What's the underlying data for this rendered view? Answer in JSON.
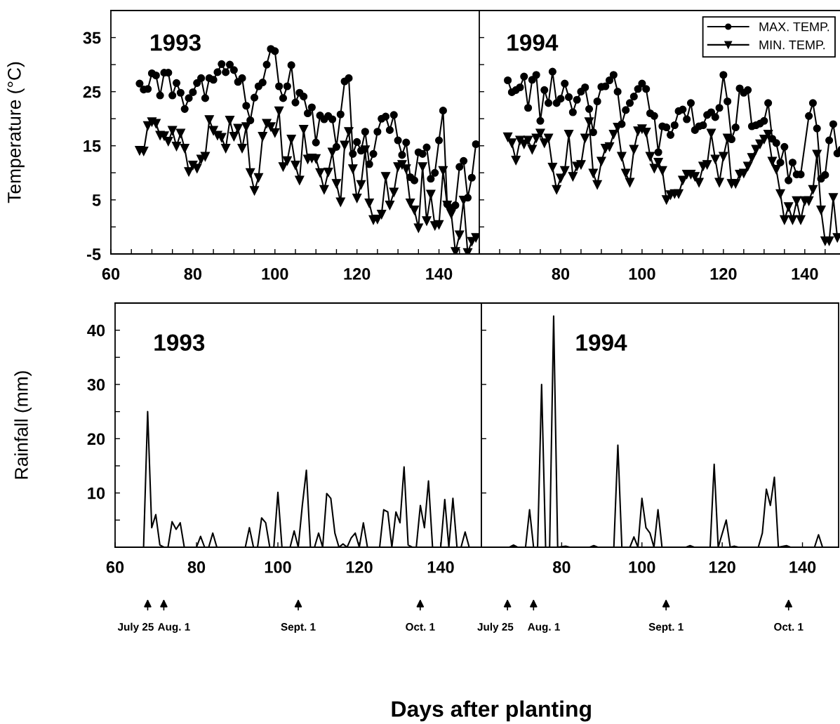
{
  "chart_data": [
    {
      "type": "line",
      "ylabel": "Temperature (°C)",
      "annotations": [
        "1993"
      ],
      "xlim": [
        60,
        150
      ],
      "ylim": [
        -5,
        40
      ],
      "xticks": [
        60,
        {
          "value": 65,
          "label": null
        },
        {
          "value": 70,
          "label": null
        },
        {
          "value": 75,
          "label": null
        },
        80,
        {
          "value": 85,
          "label": null
        },
        {
          "value": 90,
          "label": null
        },
        {
          "value": 95,
          "label": null
        },
        100,
        {
          "value": 105,
          "label": null
        },
        {
          "value": 110,
          "label": null
        },
        {
          "value": 115,
          "label": null
        },
        120,
        {
          "value": 125,
          "label": null
        },
        {
          "value": 130,
          "label": null
        },
        {
          "value": 135,
          "label": null
        },
        140,
        {
          "value": 145,
          "label": null
        },
        {
          "value": 150,
          "label": null
        }
      ],
      "yticks": [
        -5,
        {
          "value": 0,
          "label": null
        },
        5,
        {
          "value": 10,
          "label": null
        },
        15,
        {
          "value": 20,
          "label": null
        },
        25,
        {
          "value": 30,
          "label": null
        },
        35
      ],
      "series": [
        {
          "color": "#000000",
          "marker": "circle",
          "x": [
            67,
            68,
            69,
            70,
            71,
            72,
            73,
            74,
            75,
            76,
            77,
            78,
            79,
            80,
            81,
            82,
            83,
            84,
            85,
            86,
            87,
            88,
            89,
            90,
            91,
            92,
            93,
            94,
            95,
            96,
            97,
            98,
            99,
            100,
            101,
            102,
            103,
            104,
            105,
            106,
            107,
            108,
            109,
            110,
            111,
            112,
            113,
            114,
            115,
            116,
            117,
            118,
            119,
            120,
            121,
            122,
            123,
            124,
            125,
            126,
            127,
            128,
            129,
            130,
            131,
            132,
            133,
            134,
            135,
            136,
            137,
            138,
            139,
            140,
            141,
            142,
            143,
            144,
            145,
            146,
            147,
            148,
            149
          ],
          "values": [
            26.5,
            25.4,
            25.5,
            28.4,
            28,
            24.3,
            28.5,
            28.5,
            24.3,
            26.6,
            24.8,
            21.8,
            23.8,
            24.9,
            26.6,
            27.5,
            23.8,
            27.5,
            27.2,
            28.6,
            30.1,
            28.6,
            30,
            29,
            26.8,
            27.5,
            22.4,
            19.7,
            23.9,
            26,
            26.7,
            30,
            32.9,
            32.5,
            26,
            23.8,
            26,
            29.9,
            23,
            24.8,
            24.1,
            21,
            22.1,
            15.6,
            20.6,
            19.9,
            20.5,
            19.9,
            14.8,
            20.8,
            26.9,
            27.5,
            13.5,
            15.7,
            14.1,
            17.6,
            11.6,
            13.5,
            17.6,
            20,
            20.4,
            17.9,
            20.7,
            16,
            13.3,
            15.6,
            9.2,
            8.6,
            13.8,
            13.5,
            14.7,
            8.9,
            10,
            16,
            21.5,
            4.2,
            3.5,
            4,
            11.1,
            12.2,
            5.4,
            9.1,
            15.3
          ]
        },
        {
          "color": "#000000",
          "marker": "triangle",
          "x": [
            67,
            68,
            69,
            70,
            71,
            72,
            73,
            74,
            75,
            76,
            77,
            78,
            79,
            80,
            81,
            82,
            83,
            84,
            85,
            86,
            87,
            88,
            89,
            90,
            91,
            92,
            93,
            94,
            95,
            96,
            97,
            98,
            99,
            100,
            101,
            102,
            103,
            104,
            105,
            106,
            107,
            108,
            109,
            110,
            111,
            112,
            113,
            114,
            115,
            116,
            117,
            118,
            119,
            120,
            121,
            122,
            123,
            124,
            125,
            126,
            127,
            128,
            129,
            130,
            131,
            132,
            133,
            134,
            135,
            136,
            137,
            138,
            139,
            140,
            141,
            142,
            143,
            144,
            145,
            146,
            147,
            148,
            149
          ],
          "values": [
            14.1,
            14,
            18.7,
            19.4,
            19.1,
            16.9,
            16.8,
            15.8,
            17.8,
            14.9,
            17.3,
            14.5,
            10.2,
            11.4,
            10.8,
            12.5,
            13,
            19.8,
            17.8,
            16.9,
            16.5,
            14.5,
            19.7,
            16.7,
            18.2,
            14.5,
            18.5,
            10,
            6.7,
            9.1,
            16.7,
            19.1,
            18.5,
            17.4,
            21.4,
            11.1,
            12.2,
            16.2,
            11.4,
            8.6,
            18,
            12.5,
            12.7,
            12.6,
            10,
            6.9,
            10.1,
            13.8,
            8,
            4.6,
            15.1,
            17.6,
            10.7,
            5.3,
            7.8,
            14.2,
            4.4,
            1.3,
            1.4,
            2.3,
            9.3,
            4,
            6.4,
            11.1,
            11.5,
            10.7,
            4.4,
            3.1,
            -0.2,
            11.1,
            1.1,
            6,
            0.2,
            0.4,
            10.4,
            4,
            2.4,
            -4.6,
            -1.5,
            4.9,
            -4.8,
            -2.7,
            -2.0
          ]
        }
      ]
    },
    {
      "type": "line",
      "annotations": [
        "1994"
      ],
      "legend": "top right",
      "tick_labels": "x",
      "xlim": [
        60,
        149
      ],
      "ylim": [
        -5,
        40
      ],
      "xticks": [
        {
          "value": 60,
          "label": null
        },
        {
          "value": 65,
          "label": null
        },
        {
          "value": 70,
          "label": null
        },
        {
          "value": 75,
          "label": null
        },
        80,
        {
          "value": 85,
          "label": null
        },
        {
          "value": 90,
          "label": null
        },
        {
          "value": 95,
          "label": null
        },
        100,
        {
          "value": 105,
          "label": null
        },
        {
          "value": 110,
          "label": null
        },
        {
          "value": 115,
          "label": null
        },
        120,
        {
          "value": 125,
          "label": null
        },
        {
          "value": 130,
          "label": null
        },
        {
          "value": 135,
          "label": null
        },
        140,
        {
          "value": 145,
          "label": null
        }
      ],
      "yticks": [
        -5,
        0,
        5,
        10,
        15,
        20,
        25,
        30,
        35
      ],
      "series": [
        {
          "name": "MAX. TEMP.",
          "color": "#000000",
          "marker": "circle",
          "x": [
            67,
            68,
            69,
            70,
            71,
            72,
            73,
            74,
            75,
            76,
            77,
            78,
            79,
            80,
            81,
            82,
            83,
            84,
            85,
            86,
            87,
            88,
            89,
            90,
            91,
            92,
            93,
            94,
            95,
            96,
            97,
            98,
            99,
            100,
            101,
            102,
            103,
            104,
            105,
            106,
            107,
            108,
            109,
            110,
            111,
            112,
            113,
            114,
            115,
            116,
            117,
            118,
            119,
            120,
            121,
            122,
            123,
            124,
            125,
            126,
            127,
            128,
            129,
            130,
            131,
            132,
            133,
            134,
            135,
            136,
            137,
            138,
            139,
            141,
            142,
            143,
            144,
            145,
            146,
            147,
            148,
            149
          ],
          "values": [
            27.1,
            24.9,
            25.3,
            25.8,
            27.8,
            22.0,
            27.2,
            28.1,
            19.6,
            25.3,
            22.9,
            28.7,
            22.9,
            23.7,
            26.5,
            24.0,
            21.2,
            23.5,
            25.0,
            25.8,
            21.8,
            17.5,
            23.2,
            25.9,
            26.0,
            27.1,
            28.1,
            25.0,
            19.0,
            21.6,
            22.9,
            24.1,
            25.5,
            26.5,
            25.5,
            21.0,
            20.5,
            13.8,
            18.6,
            18.4,
            17.0,
            18.8,
            21.4,
            21.7,
            19.9,
            22.9,
            17.9,
            18.6,
            18.8,
            20.7,
            21.2,
            20.3,
            22.0,
            28.1,
            23.2,
            16.2,
            18.4,
            25.6,
            24.8,
            25.3,
            18.6,
            18.8,
            19.1,
            19.6,
            22.9,
            16.3,
            15.5,
            11.9,
            14.8,
            8.6,
            11.9,
            9.7,
            9.7,
            20.5,
            22.9,
            18.2,
            8.9,
            9.6,
            16.0,
            19.0,
            13.6,
            14.3
          ]
        },
        {
          "name": "MIN. TEMP.",
          "color": "#000000",
          "marker": "triangle",
          "x": [
            67,
            68,
            69,
            70,
            71,
            72,
            73,
            74,
            75,
            76,
            77,
            78,
            79,
            80,
            81,
            82,
            83,
            84,
            85,
            86,
            87,
            88,
            89,
            90,
            91,
            92,
            93,
            94,
            95,
            96,
            97,
            98,
            99,
            100,
            101,
            102,
            103,
            104,
            105,
            106,
            107,
            108,
            109,
            110,
            111,
            112,
            113,
            114,
            115,
            116,
            117,
            118,
            119,
            120,
            121,
            122,
            123,
            124,
            125,
            126,
            127,
            128,
            129,
            130,
            131,
            132,
            133,
            134,
            135,
            136,
            137,
            138,
            139,
            140,
            141,
            142,
            143,
            144,
            145,
            146,
            147,
            148
          ],
          "values": [
            16.6,
            15.5,
            12.3,
            16,
            15.3,
            16,
            14.3,
            16.4,
            17.3,
            15.5,
            16.4,
            11,
            6.9,
            9,
            10.4,
            17.1,
            9.3,
            11.2,
            11.5,
            16.4,
            19.4,
            9.9,
            7.8,
            12.1,
            14.5,
            14.8,
            17.1,
            18.4,
            13,
            9.9,
            8.2,
            14.3,
            17.7,
            18.1,
            17.5,
            13,
            10.8,
            11.9,
            10.4,
            5,
            5.9,
            6.1,
            6.1,
            8.6,
            9.7,
            9.7,
            9.3,
            8.2,
            11.2,
            11.5,
            17.3,
            12.5,
            8.2,
            13,
            16.4,
            8,
            8,
            9.7,
            9.9,
            11.2,
            12.8,
            14.3,
            15.3,
            16.2,
            17.1,
            12.1,
            10.6,
            6.1,
            1.3,
            3.7,
            1.3,
            4.8,
            1.3,
            4.8,
            4.8,
            6.9,
            13.4,
            3.1,
            -2.6,
            -2.6,
            5.4,
            -2.0
          ]
        }
      ]
    },
    {
      "type": "line",
      "ylabel": "Rainfall (mm)",
      "xlabel": "Days after planting",
      "color": "#000000",
      "annotations": [
        "1993",
        "July 25",
        "Aug. 1",
        "Sept. 1",
        "Oct. 1"
      ],
      "xlim": [
        60,
        150
      ],
      "ylim": [
        0,
        45
      ],
      "xticks": [
        60,
        80,
        100,
        120,
        140
      ],
      "yticks": [
        {
          "value": 5,
          "label": null
        },
        10,
        {
          "value": 15,
          "label": null
        },
        20,
        {
          "value": 25,
          "label": null
        },
        30,
        {
          "value": 35,
          "label": null
        },
        40
      ],
      "x": [
        60,
        67,
        68,
        69,
        70,
        71,
        72,
        73,
        74,
        75,
        76,
        77,
        80,
        81,
        82,
        83,
        84,
        85,
        92,
        93,
        94,
        95,
        96,
        97,
        98,
        99,
        100,
        101,
        103,
        104,
        105,
        106,
        107,
        108,
        109,
        110,
        111,
        112,
        113,
        114,
        115,
        116,
        117,
        118,
        119,
        120,
        121,
        122,
        125,
        126,
        127,
        128,
        129,
        130,
        131,
        132,
        133,
        134,
        135,
        136,
        137,
        138,
        140,
        141,
        142,
        143,
        144,
        145,
        146,
        147,
        150
      ],
      "values": [
        0,
        0,
        25,
        3.6,
        6,
        0.4,
        0,
        0,
        4.7,
        3.3,
        4.5,
        0,
        0,
        2,
        0,
        0,
        2.6,
        0,
        0,
        3.6,
        0,
        0,
        5.4,
        4.5,
        0,
        0,
        10.1,
        0,
        0,
        3,
        0,
        7.7,
        14.2,
        0,
        0,
        2.6,
        0,
        9.9,
        9,
        2.6,
        0,
        0.6,
        0,
        1.7,
        2.6,
        0,
        4.5,
        0,
        0,
        6.9,
        6.5,
        0,
        6.5,
        4.5,
        14.8,
        0.4,
        0,
        0,
        7.7,
        3.6,
        12.2,
        0,
        0,
        8.8,
        0,
        9,
        0,
        0,
        2.8,
        0,
        0
      ]
    },
    {
      "type": "line",
      "color": "#000000",
      "tick_labels": "x",
      "annotations": [
        "1994",
        "July 25",
        "Aug. 1",
        "Sept. 1",
        "Oct. 1"
      ],
      "xlim": [
        60,
        149
      ],
      "ylim": [
        0,
        45
      ],
      "xticks": [
        80,
        100,
        120,
        140
      ],
      "yticks": [
        10,
        20,
        30,
        40
      ],
      "x": [
        60,
        67,
        68,
        69,
        71,
        72,
        73,
        74,
        75,
        76,
        77,
        78,
        79,
        81,
        82,
        87,
        88,
        89,
        93,
        94,
        95,
        97,
        98,
        99,
        100,
        101,
        102,
        103,
        104,
        105,
        111,
        112,
        113,
        117,
        118,
        119,
        121,
        122,
        123,
        124,
        129,
        130,
        131,
        132,
        133,
        134,
        136,
        137,
        143,
        144,
        145,
        149
      ],
      "values": [
        0,
        0,
        0.4,
        0,
        0,
        6.9,
        0,
        0,
        30,
        0,
        0,
        42.6,
        0,
        0.2,
        0,
        0,
        0.3,
        0,
        0,
        18.8,
        0,
        0,
        1.9,
        0,
        9,
        3.6,
        2.6,
        0,
        6.9,
        0,
        0,
        0.3,
        0,
        0,
        15.3,
        0,
        5,
        0,
        0.2,
        0,
        0,
        2.6,
        10.7,
        7.7,
        12.9,
        0,
        0.3,
        0,
        0,
        2.3,
        0,
        0
      ]
    }
  ]
}
